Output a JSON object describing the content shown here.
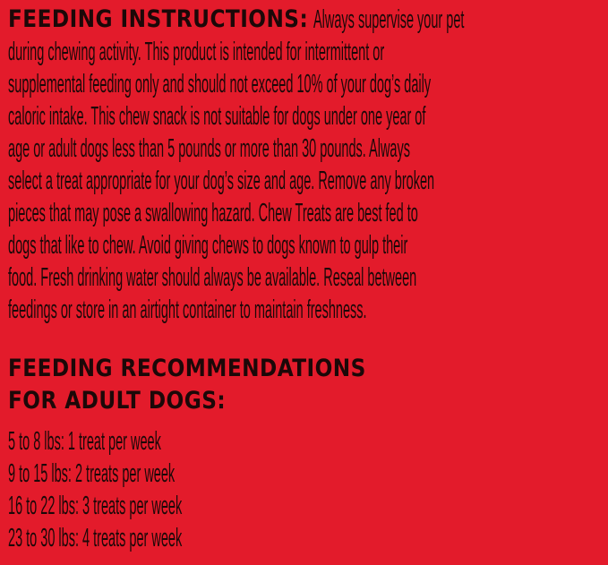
{
  "instructions": {
    "heading": "FEEDING INSTRUCTIONS:",
    "lines": [
      "Always supervise your pet",
      "during chewing activity. This product is intended for intermittent or",
      "supplemental feeding only and should not exceed 10% of your dog’s daily",
      "caloric intake. This chew snack is not suitable for dogs under one year of",
      "age or adult dogs less than 5 pounds or more than 30 pounds. Always",
      "select a treat appropriate for your dog’s size and age. Remove any broken",
      "pieces that may pose a swallowing hazard. Chew Treats are best fed to",
      "dogs that like to chew. Avoid giving chews to dogs known to gulp their",
      "food. Fresh drinking water should always be available. Reseal between",
      "feedings or store in an airtight container to maintain freshness."
    ]
  },
  "recommendations": {
    "heading_lines": [
      "FEEDING RECOMMENDATIONS",
      "FOR ADULT DOGS:"
    ],
    "items": [
      "5 to 8 lbs: 1 treat per week",
      "9 to 15 lbs: 2 treats per week",
      "16 to 22 lbs: 3 treats per week",
      "23 to 30 lbs: 4 treats per week"
    ]
  },
  "colors": {
    "background": "#e31b2b",
    "text": "#1c0808"
  }
}
